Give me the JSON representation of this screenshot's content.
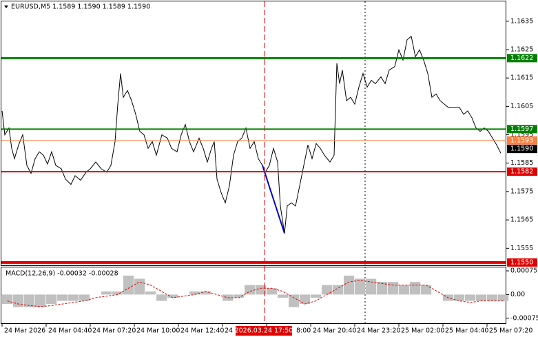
{
  "chart_data": [
    {
      "type": "line",
      "title": "EURUSD,M5  1.1589 1.1590 1.1589 1.1590",
      "xlim": [
        0,
        366
      ],
      "xticks": [
        {
          "value": 0,
          "label": "24 Mar 2026"
        },
        {
          "value": 32,
          "label": "24 Mar 04:40"
        },
        {
          "value": 64,
          "label": "24 Mar 07:20"
        },
        {
          "value": 96,
          "label": "24 Mar 10:00"
        },
        {
          "value": 128,
          "label": "24 Mar 12:40"
        },
        {
          "value": 160,
          "label": "24 M"
        },
        {
          "value": 192,
          "label": "8:00"
        },
        {
          "value": 224,
          "label": "24 Mar 20:40"
        },
        {
          "value": 256,
          "label": "24 Mar 23:20"
        },
        {
          "value": 288,
          "label": "25 Mar 02:00"
        },
        {
          "value": 320,
          "label": "25 Mar 04:40"
        },
        {
          "value": 352,
          "label": "25 Mar 07:20"
        }
      ],
      "crosshair_label": "2026.03.24 17:50",
      "ylim": [
        1.1549,
        1.1642
      ],
      "yticks": [
        1.1635,
        1.1625,
        1.1615,
        1.1605,
        1.1595,
        1.1585,
        1.1575,
        1.1565,
        1.1555
      ],
      "series": [
        {
          "color": "#000000",
          "x": [
            0,
            2,
            5,
            7,
            9,
            12,
            15,
            18,
            21,
            24,
            27,
            30,
            33,
            36,
            39,
            43,
            46,
            50,
            53,
            57,
            61,
            64,
            68,
            72,
            76,
            79,
            82,
            84,
            86,
            88,
            91,
            94,
            97,
            100,
            103,
            106,
            109,
            112,
            116,
            120,
            123,
            127,
            130,
            133,
            136,
            139,
            143,
            146,
            149,
            152,
            154,
            156,
            159,
            162,
            165,
            168,
            171,
            174,
            177,
            180,
            183,
            186,
            189,
            191,
            194,
            197,
            200,
            202,
            205,
            207,
            210,
            213,
            216,
            219,
            222,
            225,
            228,
            231,
            234,
            238,
            241,
            243,
            245,
            247,
            250,
            253,
            256,
            259,
            262,
            265,
            268,
            271,
            275,
            278,
            281,
            285,
            288,
            291,
            294,
            297,
            300,
            303,
            306,
            309,
            312,
            315,
            318,
            321,
            324,
            328,
            332,
            335,
            338,
            341,
            344,
            347,
            350,
            353,
            356,
            359,
            362
          ],
          "values": [
            1.16034,
            1.1595,
            1.15974,
            1.15902,
            1.15866,
            1.15914,
            1.1595,
            1.15842,
            1.15814,
            1.15866,
            1.1589,
            1.15878,
            1.15847,
            1.1589,
            1.15842,
            1.1583,
            1.15794,
            1.15775,
            1.15806,
            1.1579,
            1.15818,
            1.1583,
            1.15854,
            1.1583,
            1.15818,
            1.15842,
            1.15926,
            1.16058,
            1.16166,
            1.16082,
            1.16106,
            1.1607,
            1.16022,
            1.15962,
            1.1595,
            1.15902,
            1.15926,
            1.15878,
            1.1595,
            1.15938,
            1.15902,
            1.1589,
            1.1595,
            1.15986,
            1.15926,
            1.1589,
            1.15938,
            1.15902,
            1.15854,
            1.15902,
            1.15926,
            1.15794,
            1.15746,
            1.1571,
            1.1577,
            1.15878,
            1.15926,
            1.15938,
            1.15974,
            1.15902,
            1.15926,
            1.15866,
            1.15842,
            1.15818,
            1.15842,
            1.15902,
            1.15854,
            1.15699,
            1.15603,
            1.15699,
            1.1571,
            1.15699,
            1.1577,
            1.15842,
            1.15914,
            1.15866,
            1.15919,
            1.15902,
            1.15878,
            1.15854,
            1.15878,
            1.16202,
            1.1613,
            1.16178,
            1.1607,
            1.16082,
            1.16058,
            1.16118,
            1.16166,
            1.16118,
            1.16142,
            1.1613,
            1.16154,
            1.1613,
            1.16178,
            1.1619,
            1.16249,
            1.16213,
            1.16285,
            1.16297,
            1.16225,
            1.16249,
            1.16213,
            1.16166,
            1.16082,
            1.16094,
            1.1607,
            1.16058,
            1.16046,
            1.16046,
            1.16046,
            1.16022,
            1.16034,
            1.1601,
            1.15974,
            1.15962,
            1.15974,
            1.15962,
            1.15938,
            1.15914,
            1.15885
          ]
        },
        {
          "color": "#0000cc",
          "x": [
            189,
            205
          ],
          "values": [
            1.15842,
            1.15603
          ]
        }
      ],
      "levels": [
        {
          "value": 1.1622,
          "color": "#008000"
        },
        {
          "value": 1.1597,
          "color": "#008000"
        },
        {
          "value": 1.1593,
          "color": "#ff8040"
        },
        {
          "value": 1.1582,
          "color": "#e00000"
        },
        {
          "value": 1.155,
          "label": "1.1550",
          "color": "#e00000"
        }
      ],
      "last_price": {
        "value": 1.159,
        "label": "1.1590"
      }
    },
    {
      "type": "bar",
      "title": "MACD(12,26,9) -0.00032 -0.00028",
      "xlim": [
        0,
        366
      ],
      "ylim": [
        -0.00093,
        0.00086
      ],
      "yticks": [
        0.00075,
        {
          "value": 0,
          "label": "0.00"
        },
        -0.00075
      ],
      "x": [
        0,
        8,
        16,
        24,
        32,
        40,
        48,
        56,
        64,
        72,
        80,
        88,
        96,
        104,
        112,
        120,
        128,
        136,
        144,
        152,
        160,
        168,
        176,
        184,
        192,
        200,
        208,
        216,
        224,
        232,
        240,
        248,
        256,
        264,
        272,
        280,
        288,
        296,
        304,
        312,
        320,
        328,
        336,
        344,
        352,
        360
      ],
      "color": "#c0c0c0",
      "values": [
        -0.0003,
        -0.0004,
        -0.0004,
        -0.0004,
        -0.0003,
        -0.0002,
        -0.0002,
        -0.0002,
        0,
        0.0001,
        0.0001,
        0.0006,
        0.0005,
        0.0001,
        -0.0002,
        -0.0001,
        0,
        0.0001,
        0.0001,
        0,
        -0.0002,
        -0.0001,
        0.0003,
        0.0003,
        0.0002,
        -0.0001,
        -0.0004,
        -0.0003,
        -0.0001,
        0.0003,
        0.0003,
        0.0006,
        0.0005,
        0.0005,
        0.0004,
        0.0004,
        0.0003,
        0.0004,
        0.0003,
        0,
        -0.0002,
        -0.0002,
        -0.0002,
        -0.0002,
        -0.0002,
        -0.0002
      ],
      "signal": {
        "color": "#e00000",
        "values": [
          -0.0002,
          -0.0003,
          -0.00035,
          -0.00038,
          -0.00035,
          -0.0003,
          -0.00025,
          -0.0002,
          -0.0001,
          -5e-05,
          0,
          0.0002,
          0.0004,
          0.0003,
          0.0001,
          -0.0001,
          -5e-05,
          0,
          0.0001,
          0,
          -0.0001,
          -0.0001,
          0.0001,
          0.0002,
          0.0002,
          0.0001,
          -0.0001,
          -0.0003,
          -0.0002,
          0,
          0.0002,
          0.0004,
          0.00045,
          0.0004,
          0.00035,
          0.0003,
          0.0003,
          0.0003,
          0.0003,
          0.0001,
          -0.0001,
          -0.0002,
          -0.00025,
          -0.0002,
          -0.0002,
          -0.0002
        ]
      }
    }
  ]
}
